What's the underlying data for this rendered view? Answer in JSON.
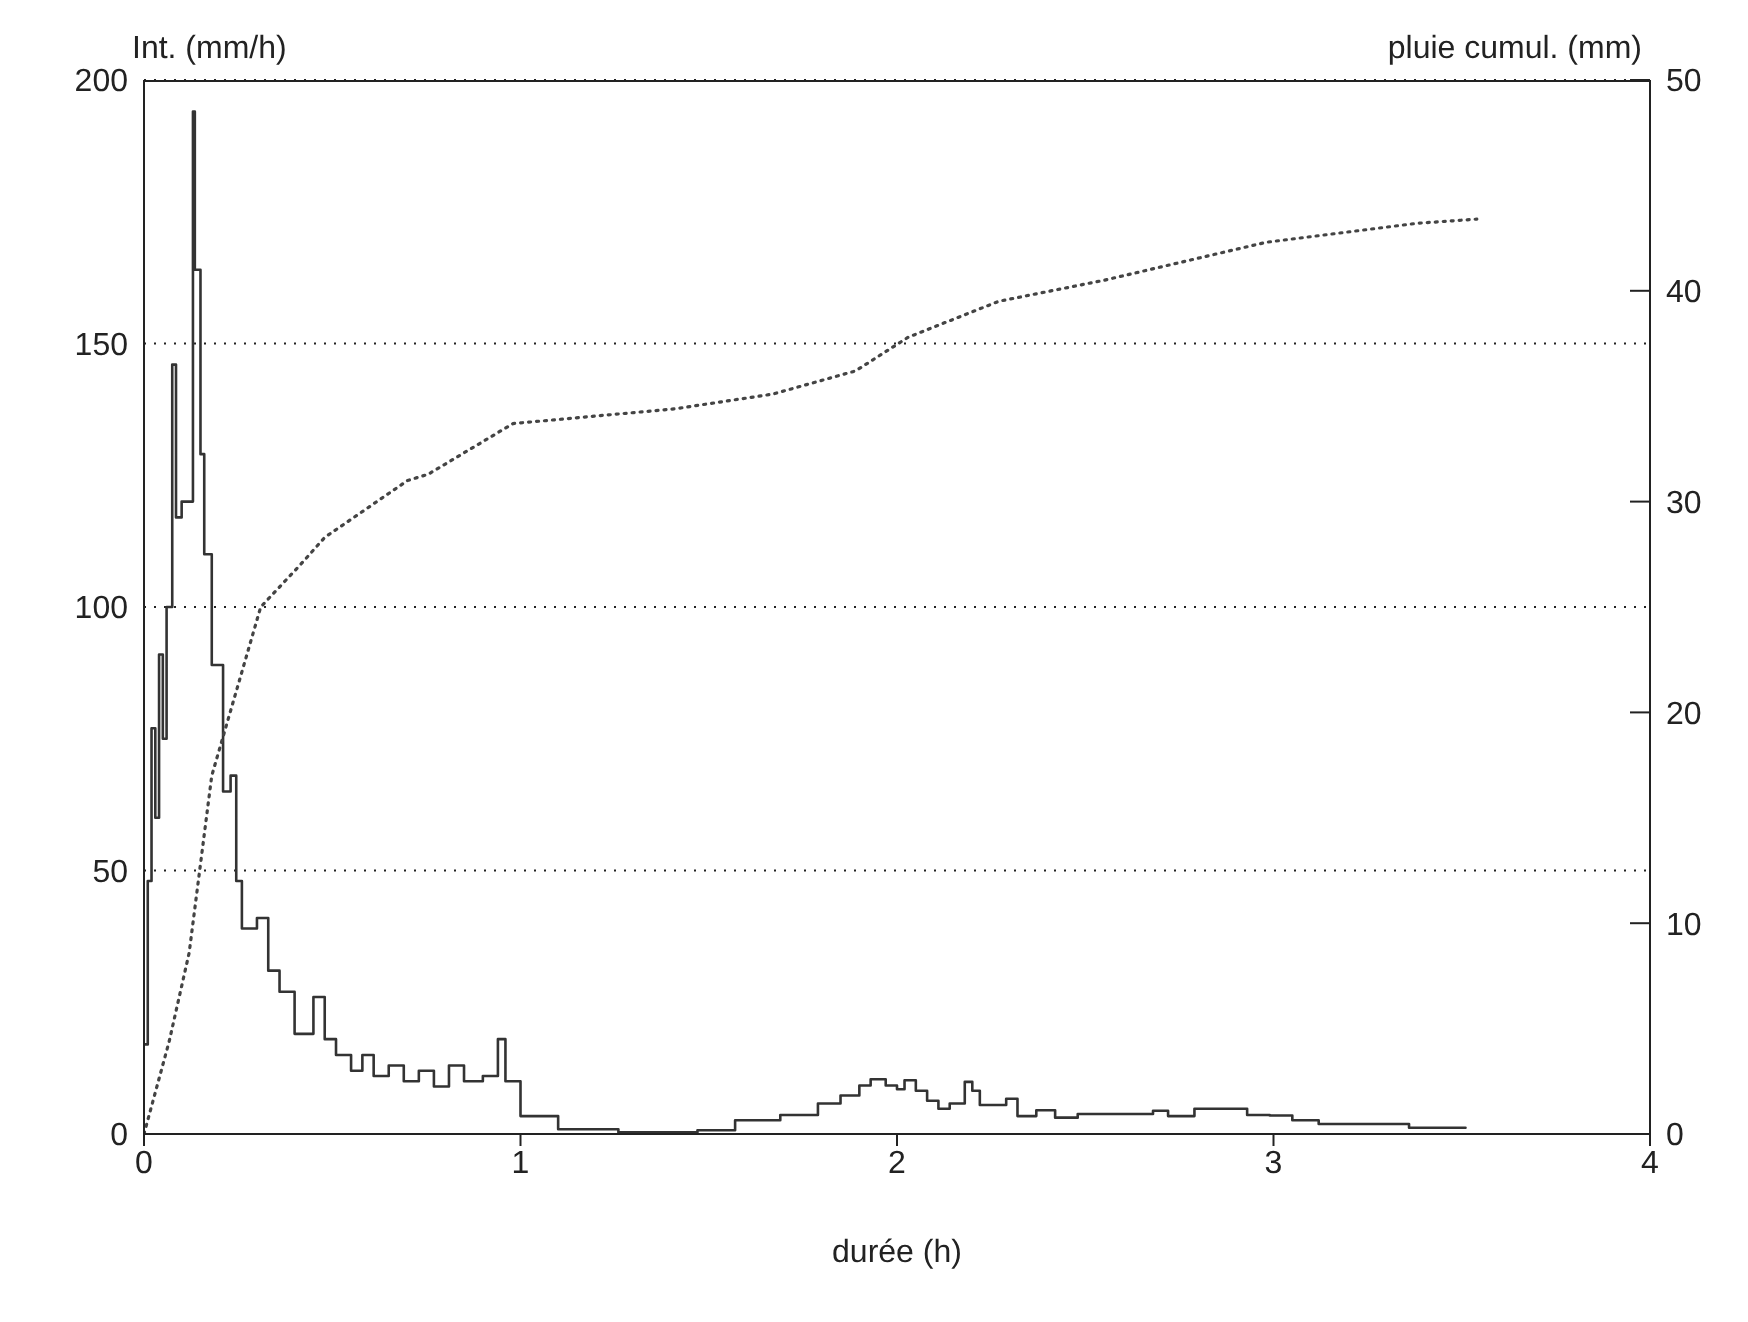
{
  "chart_data": {
    "type": "step",
    "xlabel": "durée (h)",
    "ylabel": "Int. (mm/h)",
    "y2label": "pluie cumul. (mm)",
    "xlim": [
      0,
      4
    ],
    "xticks": [
      0,
      1,
      2,
      3,
      4
    ],
    "ylim": [
      0,
      200
    ],
    "yticks": [
      0,
      50,
      100,
      150,
      200
    ],
    "y2lim": [
      0,
      50
    ],
    "y2ticks": [
      0,
      10,
      20,
      30,
      40,
      50
    ],
    "grid": "y",
    "series": [
      {
        "type": "step",
        "color": "#333333",
        "line_style": "solid",
        "x": [
          0,
          0.01,
          0.02,
          0.03,
          0.04,
          0.05,
          0.06,
          0.075,
          0.085,
          0.1,
          0.13,
          0.135,
          0.15,
          0.16,
          0.18,
          0.21,
          0.23,
          0.245,
          0.26,
          0.3,
          0.33,
          0.36,
          0.4,
          0.45,
          0.48,
          0.51,
          0.55,
          0.58,
          0.61,
          0.65,
          0.69,
          0.73,
          0.77,
          0.81,
          0.85,
          0.9,
          0.94,
          0.96,
          1.0,
          1.1,
          1.26,
          1.47,
          1.57,
          1.69,
          1.79,
          1.85,
          1.9,
          1.93,
          1.97,
          2.0,
          2.02,
          2.05,
          2.08,
          2.11,
          2.14,
          2.18,
          2.2,
          2.22,
          2.29,
          2.32,
          2.37,
          2.42,
          2.48,
          2.68,
          2.72,
          2.79,
          2.93,
          2.99,
          3.05,
          3.12,
          3.36,
          3.51
        ],
        "values": [
          17,
          48,
          77,
          60,
          91,
          75,
          100,
          146,
          117,
          120,
          194,
          164,
          129,
          110,
          89,
          65,
          68,
          48,
          39,
          41,
          31,
          27,
          19,
          26,
          18,
          15,
          12,
          15,
          11,
          13,
          10,
          12,
          9,
          13,
          10,
          11,
          18,
          10,
          3.4,
          0.9,
          0.3,
          0.7,
          2.6,
          3.6,
          5.8,
          7.3,
          9.2,
          10.4,
          9.2,
          8.5,
          10.2,
          8.2,
          6.3,
          4.8,
          5.8,
          9.9,
          8.2,
          5.5,
          6.7,
          3.4,
          4.5,
          3.1,
          3.8,
          4.4,
          3.4,
          4.8,
          3.6,
          3.5,
          2.6,
          1.9,
          1.2,
          1.2
        ]
      },
      {
        "type": "line",
        "axis": "y2",
        "color": "#444444",
        "line_style": "dotted",
        "x": [
          0,
          0.067,
          0.12,
          0.18,
          0.31,
          0.415,
          0.48,
          0.7,
          0.755,
          0.98,
          1.41,
          1.67,
          1.89,
          2.03,
          2.27,
          2.55,
          2.98,
          3.38,
          3.54
        ],
        "values": [
          0,
          4.4,
          8.6,
          17,
          25,
          27,
          28.3,
          31,
          31.3,
          33.7,
          34.4,
          35.1,
          36.2,
          37.8,
          39.5,
          40.5,
          42.3,
          43.2,
          43.4
        ]
      }
    ]
  }
}
